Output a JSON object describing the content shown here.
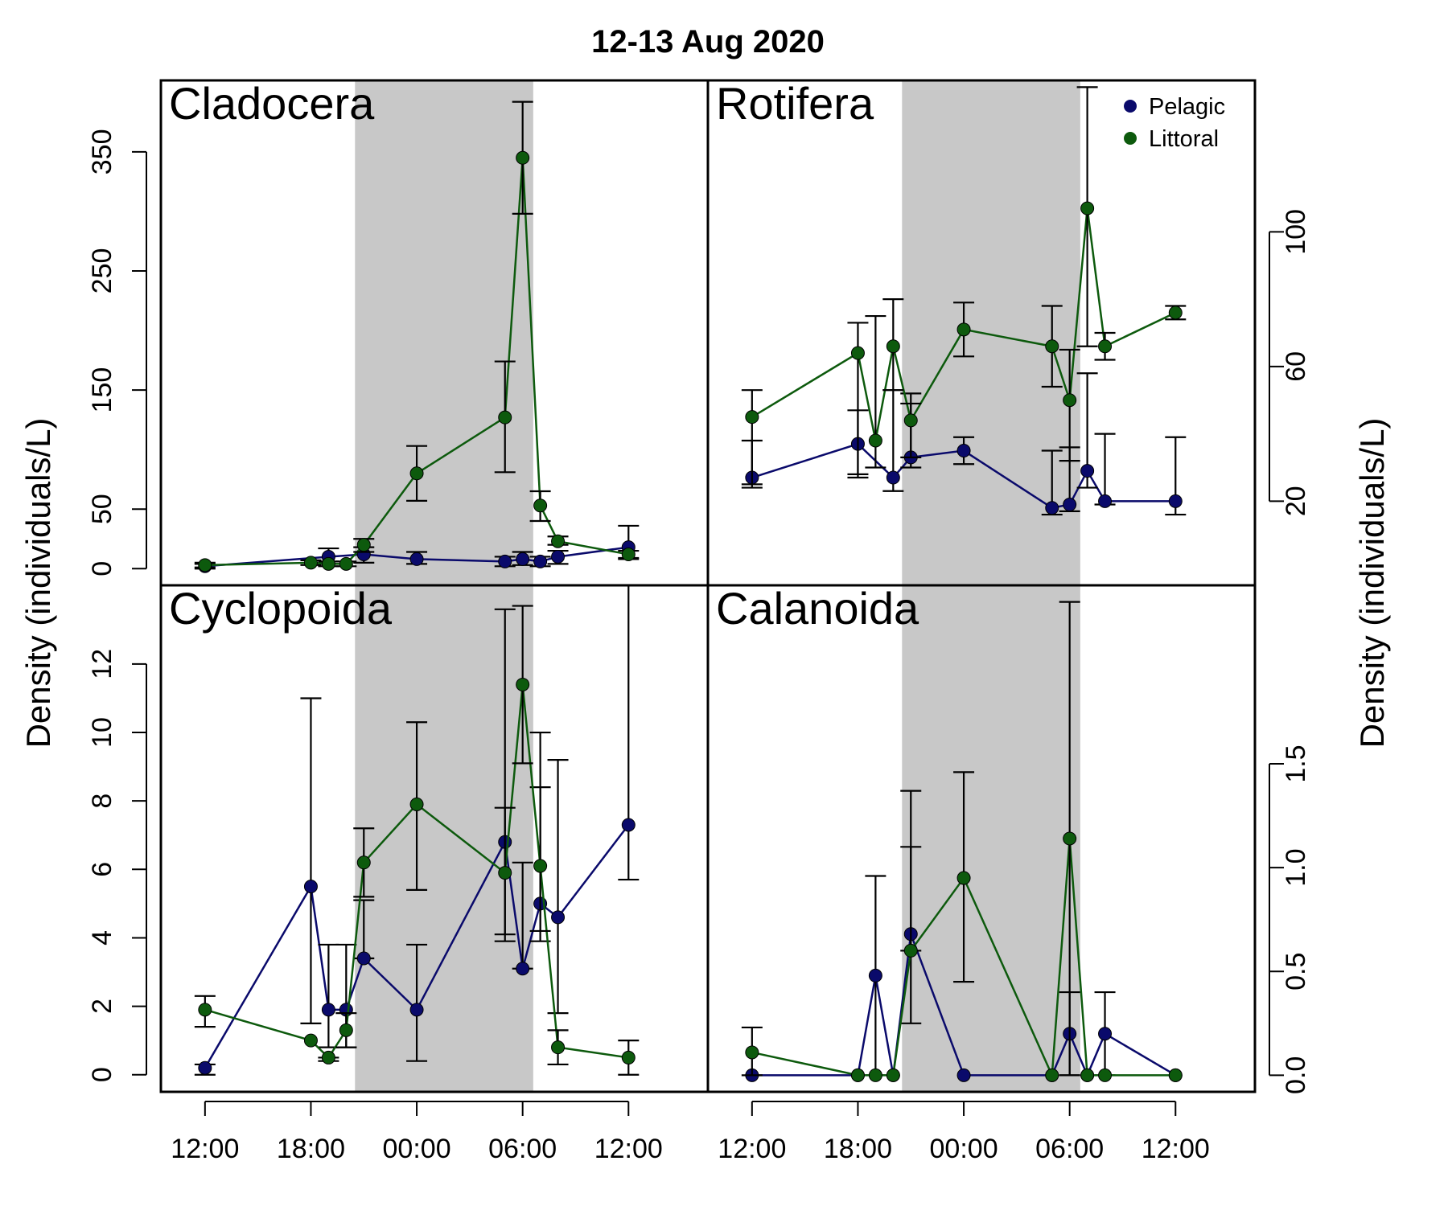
{
  "chart_data": {
    "type": "line",
    "title": "12-13 Aug 2020",
    "ylabel_left": "Density (individuals/L)",
    "ylabel_right": "Density (individuals/L)",
    "x_ticks": [
      "12:00",
      "18:00",
      "00:00",
      "06:00",
      "12:00"
    ],
    "x_tick_hours": [
      12,
      18,
      24,
      30,
      36
    ],
    "xlim_hours": [
      9.5,
      40.5
    ],
    "night_shading_hours": [
      20.5,
      30.6
    ],
    "legend": {
      "position": "top-right",
      "entries": [
        {
          "label": "Pelagic",
          "color": "#0a0a6b"
        },
        {
          "label": "Littoral",
          "color": "#0d5a0d"
        }
      ]
    },
    "grid": false,
    "panels": [
      {
        "name": "Cladocera",
        "position": "top-left",
        "y_axis_side": "left",
        "ylim": [
          -14,
          410
        ],
        "yticks": [
          0,
          50,
          150,
          250,
          350
        ],
        "series": [
          {
            "name": "Pelagic",
            "color": "#0a0a6b",
            "x": [
              12,
              19,
              21,
              24,
              29,
              30,
              31,
              32,
              36
            ],
            "y": [
              2,
              10,
              12,
              8,
              6,
              8,
              6,
              10,
              18
            ],
            "err_low": [
              0,
              4,
              5,
              4,
              2,
              3,
              2,
              4,
              8
            ],
            "err_high": [
              4,
              17,
              18,
              14,
              10,
              14,
              10,
              15,
              36
            ]
          },
          {
            "name": "Littoral",
            "color": "#0d5a0d",
            "x": [
              12,
              18,
              19,
              20,
              21,
              24,
              29,
              30,
              31,
              32,
              36
            ],
            "y": [
              3,
              5,
              4,
              4,
              20,
              80,
              127,
              345,
              53,
              23,
              12
            ],
            "err_low": [
              1,
              3,
              2,
              2,
              14,
              57,
              81,
              298,
              40,
              20,
              9
            ],
            "err_high": [
              5,
              7,
              6,
              6,
              25,
              103,
              174,
              392,
              65,
              27,
              15
            ]
          }
        ]
      },
      {
        "name": "Rotifera",
        "position": "top-right",
        "y_axis_side": "right",
        "ylim": [
          -5,
          145
        ],
        "yticks": [
          20,
          60,
          100
        ],
        "series": [
          {
            "name": "Pelagic",
            "color": "#0a0a6b",
            "x": [
              12,
              18,
              20,
              21,
              24,
              29,
              30,
              31,
              32,
              36
            ],
            "y": [
              27,
              37,
              27,
              33,
              35,
              18,
              19,
              29,
              20,
              20
            ],
            "err_low": [
              25,
              27,
              23,
              30,
              31,
              16,
              17,
              24,
              19,
              16
            ],
            "err_high": [
              38,
              47,
              53,
              52,
              39,
              35,
              36,
              58,
              40,
              39
            ]
          },
          {
            "name": "Littoral",
            "color": "#0d5a0d",
            "x": [
              12,
              18,
              19,
              20,
              21,
              24,
              29,
              30,
              31,
              32,
              36
            ],
            "y": [
              45,
              64,
              38,
              66,
              44,
              71,
              66,
              50,
              107,
              66,
              76
            ],
            "err_low": [
              24,
              28,
              30,
              53,
              33,
              63,
              54,
              32,
              66,
              62,
              74
            ],
            "err_high": [
              53,
              73,
              75,
              80,
              49,
              79,
              78,
              65,
              143,
              70,
              78
            ]
          }
        ]
      },
      {
        "name": "Cyclopoida",
        "position": "bottom-left",
        "y_axis_side": "left",
        "ylim": [
          -0.5,
          14.3
        ],
        "yticks": [
          0,
          2,
          4,
          6,
          8,
          10,
          12
        ],
        "series": [
          {
            "name": "Pelagic",
            "color": "#0a0a6b",
            "x": [
              12,
              18,
              19,
              20,
              21,
              24,
              29,
              30,
              31,
              32,
              36
            ],
            "y": [
              0.2,
              5.5,
              1.9,
              1.9,
              3.4,
              1.9,
              6.8,
              3.1,
              5.0,
              4.6,
              7.3
            ],
            "err_low": [
              0.0,
              1.5,
              0.8,
              0.8,
              3.4,
              0.4,
              3.9,
              3.1,
              3.9,
              1.8,
              5.7
            ],
            "err_high": [
              0.3,
              11.0,
              3.8,
              3.8,
              5.1,
              3.8,
              13.6,
              6.2,
              8.4,
              9.2,
              14.3
            ]
          },
          {
            "name": "Littoral",
            "color": "#0d5a0d",
            "x": [
              12,
              18,
              19,
              20,
              21,
              24,
              29,
              30,
              31,
              32,
              36
            ],
            "y": [
              1.9,
              1.0,
              0.5,
              1.3,
              6.2,
              7.9,
              5.9,
              11.4,
              6.1,
              0.8,
              0.5
            ],
            "err_low": [
              1.4,
              1.0,
              0.4,
              0.8,
              5.2,
              5.4,
              4.1,
              9.1,
              4.2,
              0.3,
              0.0
            ],
            "err_high": [
              2.3,
              1.0,
              0.5,
              1.8,
              7.2,
              10.3,
              7.8,
              13.7,
              10.0,
              1.3,
              1.0
            ]
          }
        ]
      },
      {
        "name": "Calanoida",
        "position": "bottom-right",
        "y_axis_side": "right",
        "ylim": [
          -0.08,
          2.36
        ],
        "yticks": [
          0.0,
          0.5,
          1.0,
          1.5
        ],
        "series": [
          {
            "name": "Pelagic",
            "color": "#0a0a6b",
            "x": [
              12,
              18,
              19,
              20,
              21,
              24,
              29,
              30,
              31,
              32,
              36
            ],
            "y": [
              0,
              0,
              0.48,
              0,
              0.68,
              0,
              0,
              0.2,
              0,
              0.2,
              0
            ],
            "err_low": [
              0,
              0,
              0,
              0,
              0.25,
              0,
              0,
              0,
              0,
              0,
              0
            ],
            "err_high": [
              0,
              0,
              0.96,
              0,
              1.1,
              0,
              0,
              0.4,
              0,
              0.4,
              0
            ]
          },
          {
            "name": "Littoral",
            "color": "#0d5a0d",
            "x": [
              12,
              18,
              19,
              20,
              21,
              24,
              29,
              30,
              31,
              32,
              36
            ],
            "y": [
              0.11,
              0,
              0,
              0,
              0.6,
              0.95,
              0,
              1.14,
              0,
              0,
              0
            ],
            "err_low": [
              0,
              0,
              0,
              0,
              0.6,
              0.45,
              0,
              0,
              0,
              0,
              0
            ],
            "err_high": [
              0.23,
              0,
              0,
              0,
              1.37,
              1.46,
              0,
              2.28,
              0,
              0,
              0
            ]
          }
        ]
      }
    ]
  }
}
